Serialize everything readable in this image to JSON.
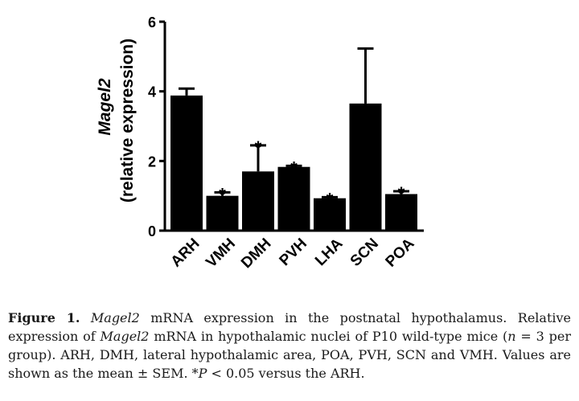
{
  "chart_data": {
    "type": "bar",
    "ylabel_line1": "Magel2",
    "ylabel_line2": "(relative expression)",
    "ylim": [
      0,
      6
    ],
    "yticks": [
      0,
      2,
      4,
      6
    ],
    "categories": [
      "ARH",
      "VMH",
      "DMH",
      "PVH",
      "LHA",
      "SCN",
      "POA"
    ],
    "values": [
      3.88,
      1.0,
      1.7,
      1.83,
      0.93,
      3.65,
      1.05
    ],
    "errors": [
      0.2,
      0.1,
      0.75,
      0.03,
      0.03,
      1.58,
      0.08
    ],
    "significance": [
      "",
      "*",
      "*",
      "*",
      "*",
      "",
      "*"
    ],
    "bar_color": "#000000",
    "grid": false
  },
  "caption": {
    "figure_label": "Figure 1.",
    "gene": "Magel2",
    "title_rest": " mRNA expression in the postnatal hypothalamus. Relative expression of ",
    "gene2": "Magel2",
    "body_a": " mRNA in hypothalamic nuclei of P10 wild-type mice (",
    "n_symbol": "n",
    "body_b": " = 3 per group). ARH, DMH, lateral hypothalamic area, POA, PVH, SCN and VMH. Values are shown as the mean ± SEM. *",
    "p_symbol": "P",
    "body_c": " < 0.05 versus the ARH."
  }
}
